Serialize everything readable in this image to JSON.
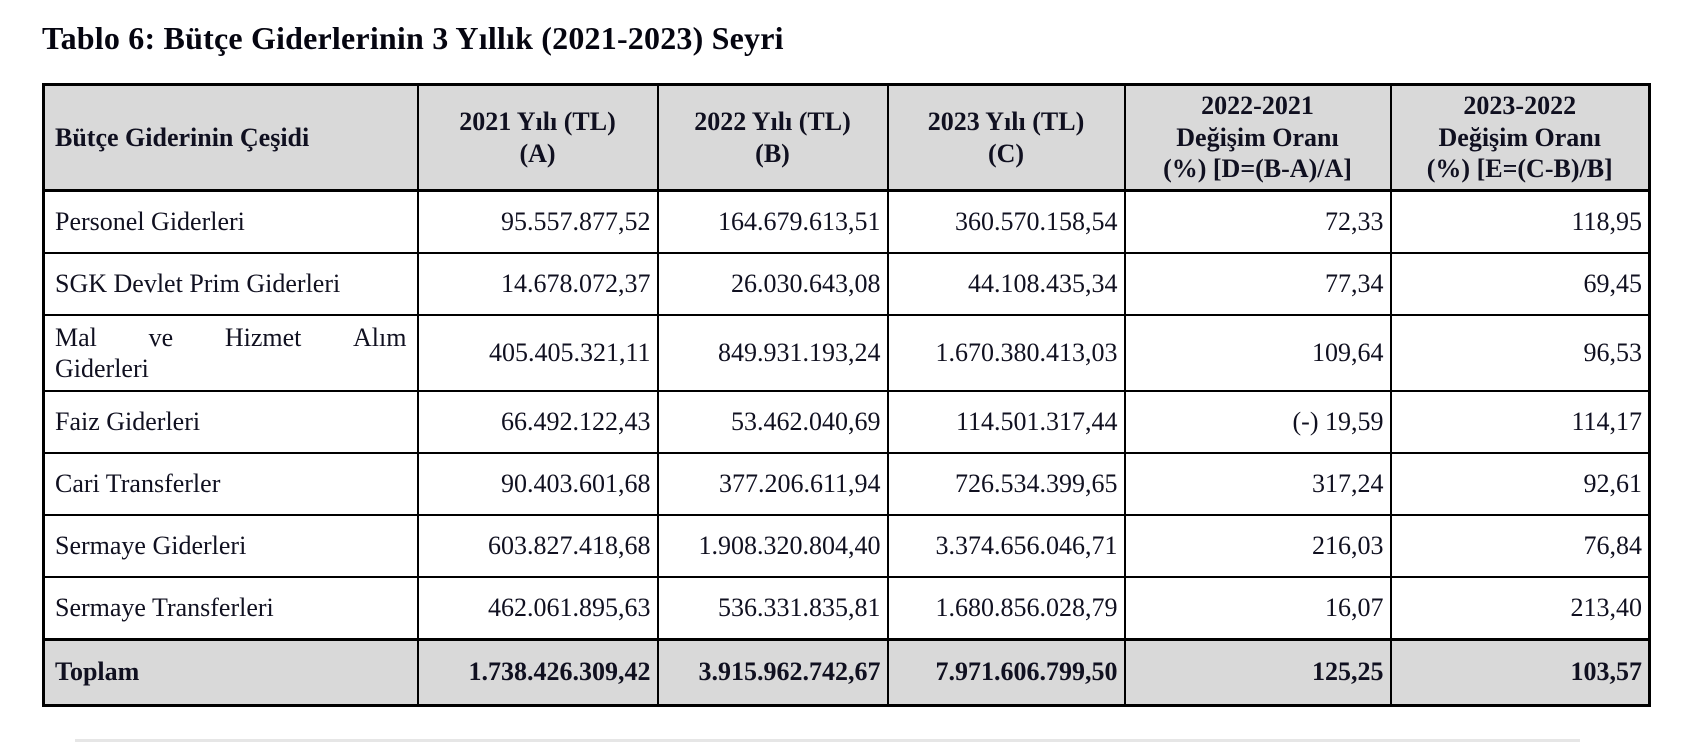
{
  "title": "Tablo 6: Bütçe Giderlerinin 3 Yıllık (2021-2023) Seyri",
  "table": {
    "columns": [
      "Bütçe Giderinin Çeşidi",
      "2021 Yılı (TL)\n(A)",
      "2022 Yılı (TL)\n(B)",
      "2023 Yılı (TL)\n(C)",
      "2022-2021\nDeğişim Oranı\n(%) [D=(B-A)/A]",
      "2023-2022\nDeğişim Oranı\n(%) [E=(C-B)/B]"
    ],
    "rows": [
      {
        "label": "Personel Giderleri",
        "values": [
          "95.557.877,52",
          "164.679.613,51",
          "360.570.158,54",
          "72,33",
          "118,95"
        ]
      },
      {
        "label": "SGK Devlet Prim Giderleri",
        "values": [
          "14.678.072,37",
          "26.030.643,08",
          "44.108.435,34",
          "77,34",
          "69,45"
        ]
      },
      {
        "label": "Mal ve Hizmet Alım\nGiderleri",
        "values": [
          "405.405.321,11",
          "849.931.193,24",
          "1.670.380.413,03",
          "109,64",
          "96,53"
        ]
      },
      {
        "label": "Faiz Giderleri",
        "values": [
          "66.492.122,43",
          "53.462.040,69",
          "114.501.317,44",
          "(-) 19,59",
          "114,17"
        ]
      },
      {
        "label": "Cari Transferler",
        "values": [
          "90.403.601,68",
          "377.206.611,94",
          "726.534.399,65",
          "317,24",
          "92,61"
        ]
      },
      {
        "label": "Sermaye Giderleri",
        "values": [
          "603.827.418,68",
          "1.908.320.804,40",
          "3.374.656.046,71",
          "216,03",
          "76,84"
        ]
      },
      {
        "label": "Sermaye Transferleri",
        "values": [
          "462.061.895,63",
          "536.331.835,81",
          "1.680.856.028,79",
          "16,07",
          "213,40"
        ]
      }
    ],
    "total": {
      "label": "Toplam",
      "values": [
        "1.738.426.309,42",
        "3.915.962.742,67",
        "7.971.606.799,50",
        "125,25",
        "103,57"
      ]
    }
  },
  "colors": {
    "header_bg": "#d9d9d9",
    "total_bg": "#d9d9d9",
    "border": "#000000",
    "text": "#101020"
  }
}
